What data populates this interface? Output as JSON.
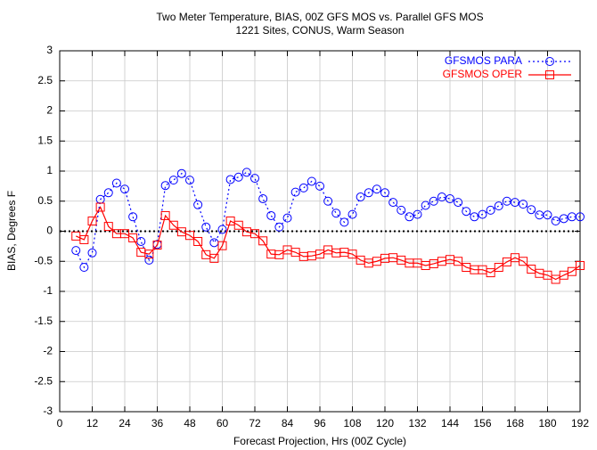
{
  "chart_data": {
    "type": "line",
    "title": "Two Meter Temperature, BIAS, 00Z GFS MOS vs. Parallel GFS MOS",
    "subtitle": "1221 Sites, CONUS, Warm Season",
    "xlabel": "Forecast Projection, Hrs (00Z Cycle)",
    "ylabel": "BIAS, Degrees F",
    "x": [
      6,
      9,
      12,
      15,
      18,
      21,
      24,
      27,
      30,
      33,
      36,
      39,
      42,
      45,
      48,
      51,
      54,
      57,
      60,
      63,
      66,
      69,
      72,
      75,
      78,
      81,
      84,
      87,
      90,
      93,
      96,
      99,
      102,
      105,
      108,
      111,
      114,
      117,
      120,
      123,
      126,
      129,
      132,
      135,
      138,
      141,
      144,
      147,
      150,
      153,
      156,
      159,
      162,
      165,
      168,
      171,
      174,
      177,
      180,
      183,
      186,
      189,
      192
    ],
    "series": [
      {
        "name": "GFSMOS PARA",
        "color": "#0000ff",
        "dash": "dotted",
        "marker": "circle",
        "values": [
          -0.32,
          -0.6,
          -0.36,
          0.53,
          0.64,
          0.8,
          0.7,
          0.24,
          -0.17,
          -0.48,
          -0.22,
          0.76,
          0.85,
          0.96,
          0.85,
          0.44,
          0.07,
          -0.19,
          0.03,
          0.86,
          0.9,
          0.98,
          0.88,
          0.54,
          0.26,
          0.07,
          0.22,
          0.65,
          0.72,
          0.83,
          0.75,
          0.5,
          0.3,
          0.15,
          0.28,
          0.57,
          0.64,
          0.7,
          0.64,
          0.48,
          0.35,
          0.24,
          0.28,
          0.43,
          0.5,
          0.57,
          0.54,
          0.48,
          0.33,
          0.24,
          0.28,
          0.35,
          0.42,
          0.5,
          0.48,
          0.45,
          0.36,
          0.27,
          0.27,
          0.17,
          0.21,
          0.24,
          0.24
        ]
      },
      {
        "name": "GFSMOS OPER",
        "color": "#ff0000",
        "dash": "solid",
        "marker": "square",
        "values": [
          -0.08,
          -0.14,
          0.17,
          0.4,
          0.08,
          -0.04,
          -0.04,
          -0.11,
          -0.35,
          -0.38,
          -0.23,
          0.26,
          0.1,
          -0.01,
          -0.07,
          -0.17,
          -0.39,
          -0.45,
          -0.24,
          0.17,
          0.1,
          -0.01,
          -0.04,
          -0.16,
          -0.38,
          -0.39,
          -0.31,
          -0.35,
          -0.42,
          -0.41,
          -0.38,
          -0.31,
          -0.36,
          -0.35,
          -0.38,
          -0.48,
          -0.53,
          -0.5,
          -0.45,
          -0.44,
          -0.48,
          -0.53,
          -0.53,
          -0.57,
          -0.54,
          -0.5,
          -0.47,
          -0.5,
          -0.6,
          -0.64,
          -0.64,
          -0.69,
          -0.6,
          -0.51,
          -0.44,
          -0.5,
          -0.63,
          -0.7,
          -0.73,
          -0.8,
          -0.73,
          -0.67,
          -0.57
        ]
      }
    ],
    "xlim": [
      0,
      192
    ],
    "xticks": [
      0,
      12,
      24,
      36,
      48,
      60,
      72,
      84,
      96,
      108,
      120,
      132,
      144,
      156,
      168,
      180,
      192
    ],
    "ylim": [
      -3,
      3
    ],
    "yticks": [
      -3,
      -2.5,
      -2,
      -1.5,
      -1,
      -0.5,
      0,
      0.5,
      1,
      1.5,
      2,
      2.5,
      3
    ],
    "grid": true,
    "legend": "top-right"
  }
}
